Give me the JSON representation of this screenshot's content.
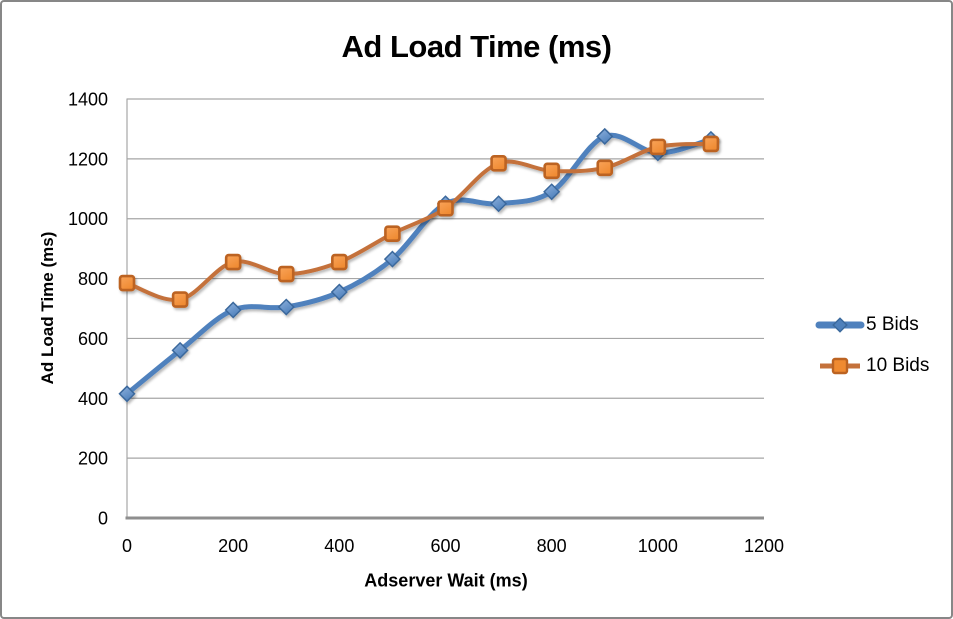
{
  "chart_data": {
    "type": "line",
    "title": "Ad Load Time (ms)",
    "xlabel": "Adserver Wait (ms)",
    "ylabel": "Ad Load Time (ms)",
    "x": [
      0,
      100,
      200,
      300,
      400,
      500,
      600,
      700,
      800,
      900,
      1000,
      1100
    ],
    "series": [
      {
        "name": "5 Bids",
        "marker": "diamond",
        "line_color": "#4F81BD",
        "line_width": 5,
        "marker_fill_light": "#8FB2DE",
        "marker_fill_dark": "#4E80BB",
        "marker_stroke": "#3A689C",
        "values": [
          415,
          560,
          695,
          705,
          755,
          865,
          1050,
          1050,
          1090,
          1275,
          1220,
          1265
        ]
      },
      {
        "name": "10 Bids",
        "marker": "square",
        "line_color": "#C4713B",
        "line_width": 4,
        "marker_fill_light": "#F9A45B",
        "marker_fill_dark": "#EF8A31",
        "marker_stroke": "#BC6322",
        "values": [
          785,
          730,
          855,
          815,
          855,
          950,
          1035,
          1185,
          1160,
          1170,
          1240,
          1250
        ]
      }
    ],
    "xlim": [
      0,
      1200
    ],
    "ylim": [
      0,
      1400
    ],
    "x_ticks": [
      0,
      200,
      400,
      600,
      800,
      1000,
      1200
    ],
    "y_ticks": [
      0,
      200,
      400,
      600,
      800,
      1000,
      1200,
      1400
    ],
    "grid": true,
    "legend_position": "right",
    "gridline_color": "#A6A6A6",
    "axis_line_color": "#8E8E8E",
    "background": "#FFFFFF"
  }
}
